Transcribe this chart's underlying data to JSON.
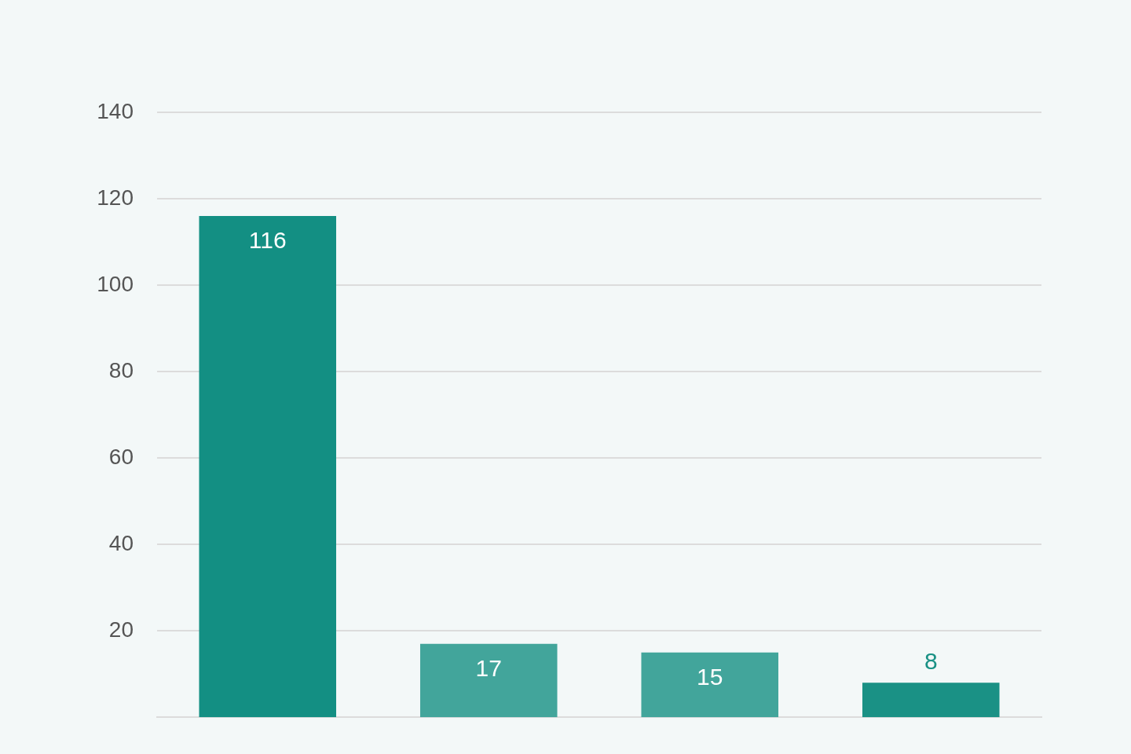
{
  "chart_data": {
    "type": "bar",
    "categories": [
      null,
      null,
      null,
      null
    ],
    "values": [
      116,
      17,
      15,
      8
    ],
    "colors": [
      "#138f83",
      "#42a59b",
      "#42a59b",
      "#1a9185"
    ],
    "ylim": [
      0,
      140
    ],
    "yticks": [
      20,
      40,
      60,
      80,
      100,
      120,
      140
    ],
    "grid": "y",
    "data_labels": true
  }
}
